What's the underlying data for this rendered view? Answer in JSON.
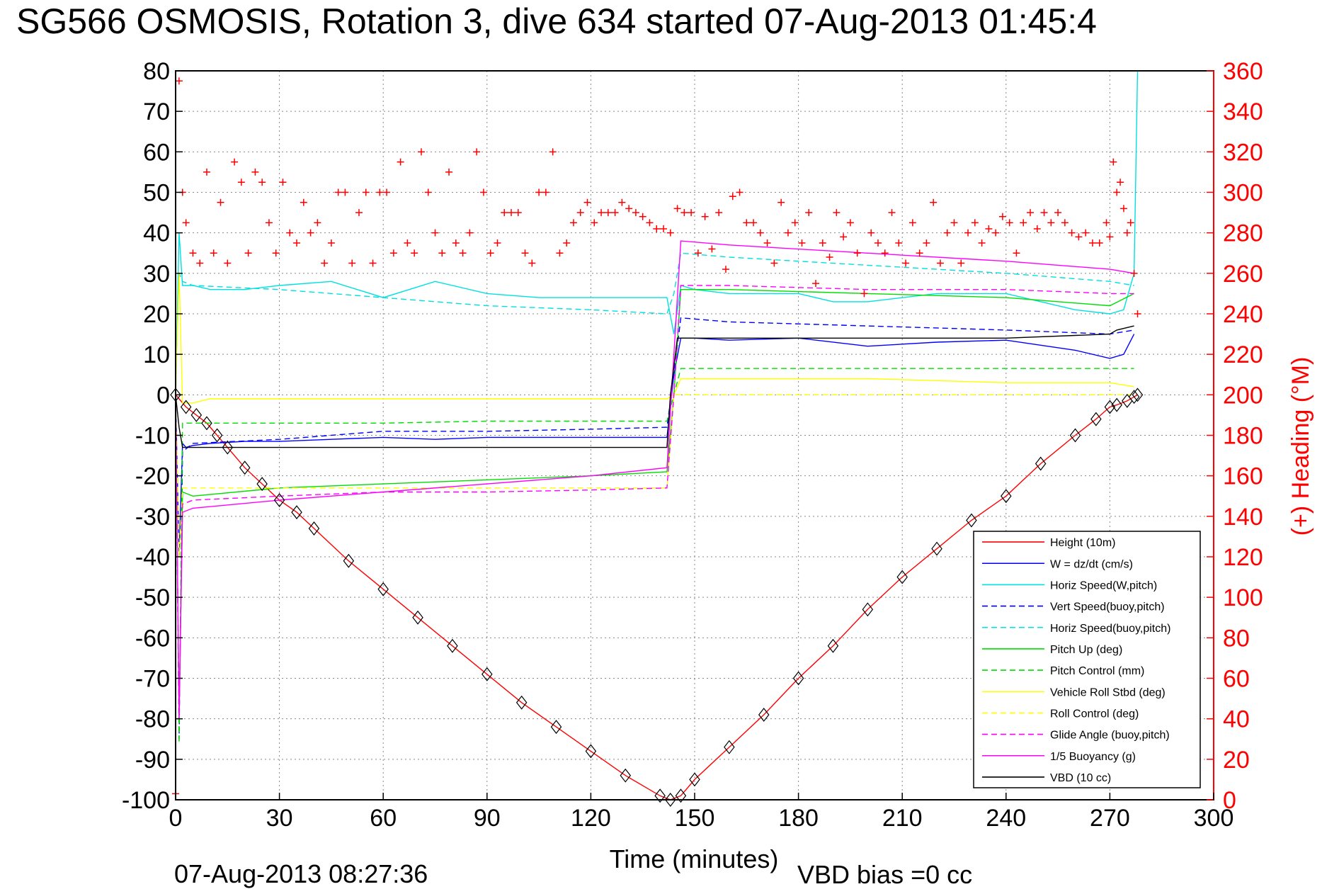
{
  "figure": {
    "title": "SG566 OSMOSIS, Rotation 3, dive 634 started 07-Aug-2013 01:45:4",
    "timestamp": "07-Aug-2013 08:27:36",
    "vbd_bias": "VBD bias =0 cc"
  },
  "chart_data": {
    "type": "line",
    "title": "SG566 OSMOSIS, Rotation 3, dive 634 started 07-Aug-2013 01:45:4",
    "xlabel": "Time (minutes)",
    "ylabel": "",
    "y2label": "(+) Heading (°M)",
    "xlim": [
      0,
      300
    ],
    "ylim": [
      -100,
      80
    ],
    "y2lim": [
      0,
      360
    ],
    "xticks": [
      0,
      30,
      60,
      90,
      120,
      150,
      180,
      210,
      240,
      270,
      300
    ],
    "yticks": [
      80,
      70,
      60,
      50,
      40,
      30,
      20,
      10,
      0,
      -10,
      -20,
      -30,
      -40,
      -50,
      -60,
      -70,
      -80,
      -90,
      -100
    ],
    "y2ticks": [
      360,
      340,
      320,
      300,
      280,
      260,
      240,
      220,
      200,
      180,
      160,
      140,
      120,
      100,
      80,
      60,
      40,
      20,
      0
    ],
    "grid": true,
    "legend_position": "bottom-right",
    "colors": {
      "axis_right": "#ff0000",
      "frame": "#000000",
      "grid": "#888888"
    },
    "series": [
      {
        "name": "Height (10m)",
        "color": "#ff0000",
        "style": "solid",
        "x": [
          0,
          3,
          6,
          9,
          12,
          15,
          20,
          25,
          30,
          35,
          40,
          50,
          60,
          70,
          80,
          90,
          100,
          110,
          120,
          130,
          140,
          143,
          146,
          150,
          160,
          170,
          180,
          190,
          200,
          210,
          220,
          230,
          240,
          250,
          260,
          266,
          270,
          272,
          275,
          277,
          278
        ],
        "y": [
          0,
          -3,
          -5,
          -7,
          -10,
          -13,
          -18,
          -22,
          -26,
          -29,
          -33,
          -41,
          -48,
          -55,
          -62,
          -69,
          -76,
          -82,
          -88,
          -94,
          -99,
          -100,
          -99,
          -95,
          -87,
          -79,
          -70,
          -62,
          -53,
          -45,
          -38,
          -31,
          -25,
          -17,
          -10,
          -6,
          -3,
          -2.5,
          -1.5,
          -0.5,
          0
        ]
      },
      {
        "name": "W = dz/dt (cm/s)",
        "color": "#0000ff",
        "style": "solid",
        "x": [
          0,
          1,
          2,
          3,
          5,
          10,
          20,
          30,
          45,
          60,
          75,
          90,
          110,
          130,
          142,
          144,
          146,
          150,
          160,
          180,
          200,
          220,
          240,
          260,
          270,
          274,
          277
        ],
        "y": [
          0,
          -40,
          -12,
          -13,
          -12.5,
          -12,
          -11.5,
          -11.5,
          -11,
          -10.5,
          -11,
          -10.5,
          -10.5,
          -10.5,
          -10.5,
          5,
          14,
          14,
          13.5,
          14,
          12,
          13,
          13.5,
          11,
          9,
          10,
          15
        ]
      },
      {
        "name": "Horiz Speed(W,pitch)",
        "color": "#00e0e0",
        "style": "solid",
        "x": [
          0,
          1,
          2,
          5,
          10,
          20,
          30,
          45,
          60,
          75,
          90,
          105,
          120,
          135,
          142,
          144,
          146,
          150,
          160,
          180,
          190,
          200,
          220,
          240,
          260,
          270,
          274,
          277,
          278
        ],
        "y": [
          0,
          40,
          27,
          27,
          26,
          26,
          27,
          28,
          24,
          28,
          25,
          24,
          24,
          24,
          24,
          15,
          27,
          26,
          25,
          25,
          23,
          23,
          25,
          25,
          21,
          20,
          21,
          30,
          80
        ]
      },
      {
        "name": "Vert Speed(buoy,pitch)",
        "color": "#0000ff",
        "style": "dashed",
        "x": [
          0,
          1,
          2,
          5,
          30,
          60,
          90,
          120,
          142,
          144,
          146,
          160,
          200,
          240,
          270,
          277
        ],
        "y": [
          0,
          -85,
          -14,
          -12,
          -11,
          -9,
          -9,
          -8.5,
          -8,
          5,
          19,
          18,
          17,
          16,
          15,
          16
        ]
      },
      {
        "name": "Horiz Speed(buoy,pitch)",
        "color": "#00e0e0",
        "style": "dashed",
        "x": [
          0,
          1,
          2,
          5,
          30,
          60,
          90,
          120,
          142,
          144,
          146,
          160,
          200,
          240,
          270,
          277
        ],
        "y": [
          0,
          30,
          28,
          27,
          26,
          24,
          22,
          21,
          20,
          25,
          35,
          34,
          32,
          30,
          28,
          27
        ]
      },
      {
        "name": "Pitch Up (deg)",
        "color": "#00dd00",
        "style": "solid",
        "x": [
          0,
          1,
          2,
          5,
          30,
          60,
          90,
          120,
          142,
          144,
          146,
          160,
          200,
          240,
          270,
          277
        ],
        "y": [
          0,
          -80,
          -24,
          -25,
          -23,
          -22,
          -21,
          -20,
          -19,
          0,
          26,
          26,
          25,
          24,
          22,
          25
        ]
      },
      {
        "name": "Pitch Control (mm)",
        "color": "#00dd00",
        "style": "dashed",
        "x": [
          0,
          1,
          2,
          5,
          30,
          60,
          90,
          120,
          142,
          144,
          146,
          277
        ],
        "y": [
          0,
          -86,
          -7,
          -7,
          -7,
          -7,
          -6.5,
          -6.5,
          -6.5,
          0,
          6.5,
          6.5
        ]
      },
      {
        "name": "Vehicle Roll Stbd (deg)",
        "color": "#ffff00",
        "style": "solid",
        "x": [
          0,
          1,
          2,
          5,
          10,
          30,
          60,
          90,
          120,
          142,
          144,
          146,
          160,
          200,
          240,
          270,
          277
        ],
        "y": [
          0,
          30,
          -2,
          -2,
          -1,
          -1,
          -1,
          -1,
          -1,
          -1,
          0,
          4,
          4,
          4,
          3,
          3,
          2
        ]
      },
      {
        "name": "Roll Control (deg)",
        "color": "#ffff00",
        "style": "dashed",
        "x": [
          0,
          1,
          2,
          5,
          30,
          60,
          90,
          120,
          142,
          144,
          146,
          277
        ],
        "y": [
          0,
          -40,
          -23,
          -23,
          -23,
          -23,
          -23,
          -23,
          -23,
          0,
          0,
          0
        ]
      },
      {
        "name": "Glide Angle (buoy,pitch)",
        "color": "#ff00ff",
        "style": "dashed",
        "x": [
          0,
          1,
          2,
          5,
          30,
          60,
          90,
          120,
          142,
          144,
          146,
          160,
          200,
          240,
          270,
          277
        ],
        "y": [
          0,
          -80,
          -27,
          -26,
          -25,
          -24,
          -24,
          -23.5,
          -23,
          0,
          27,
          27,
          26,
          26,
          25,
          25
        ]
      },
      {
        "name": "1/5 Buoyancy (g)",
        "color": "#ff00ff",
        "style": "solid",
        "x": [
          0,
          1,
          2,
          5,
          30,
          60,
          90,
          120,
          142,
          144,
          146,
          160,
          200,
          240,
          270,
          277
        ],
        "y": [
          0,
          -80,
          -29,
          -28,
          -26,
          -24,
          -22,
          -20,
          -18,
          10,
          38,
          37,
          35,
          33,
          31,
          30
        ]
      },
      {
        "name": "VBD (10 cc)",
        "color": "#000000",
        "style": "solid",
        "x": [
          0,
          1,
          2,
          5,
          30,
          60,
          90,
          120,
          142,
          143,
          145,
          146,
          200,
          240,
          270,
          272,
          277
        ],
        "y": [
          0,
          -8,
          -13,
          -13,
          -13,
          -13,
          -13,
          -13,
          -13,
          0,
          14,
          14,
          14,
          14,
          15,
          16,
          17
        ]
      }
    ],
    "heading_points": {
      "name": "(+) Heading (°M)",
      "color": "#ff0000",
      "marker": "+",
      "x": [
        0,
        1,
        2,
        3,
        5,
        7,
        9,
        11,
        13,
        15,
        17,
        19,
        21,
        23,
        25,
        27,
        29,
        31,
        33,
        35,
        37,
        39,
        41,
        43,
        45,
        47,
        49,
        51,
        53,
        55,
        57,
        59,
        61,
        63,
        65,
        67,
        69,
        71,
        73,
        75,
        77,
        79,
        81,
        83,
        85,
        87,
        89,
        91,
        93,
        95,
        97,
        99,
        101,
        103,
        105,
        107,
        109,
        111,
        113,
        115,
        117,
        119,
        121,
        123,
        125,
        127,
        129,
        131,
        133,
        135,
        137,
        139,
        141,
        143,
        145,
        147,
        149,
        151,
        153,
        155,
        157,
        159,
        161,
        163,
        165,
        167,
        169,
        171,
        173,
        175,
        177,
        179,
        181,
        183,
        185,
        187,
        189,
        191,
        193,
        195,
        197,
        199,
        201,
        203,
        205,
        207,
        209,
        211,
        213,
        215,
        217,
        219,
        221,
        223,
        225,
        227,
        229,
        231,
        233,
        235,
        237,
        239,
        241,
        243,
        245,
        247,
        249,
        251,
        253,
        255,
        257,
        259,
        261,
        263,
        265,
        267,
        269,
        270,
        271,
        272,
        273,
        274,
        275,
        276,
        277,
        278
      ],
      "y": [
        3,
        355,
        300,
        285,
        270,
        265,
        310,
        270,
        295,
        265,
        315,
        305,
        270,
        310,
        305,
        285,
        270,
        305,
        280,
        275,
        295,
        280,
        285,
        265,
        275,
        300,
        300,
        265,
        290,
        300,
        265,
        300,
        300,
        270,
        315,
        275,
        270,
        320,
        300,
        280,
        270,
        310,
        275,
        270,
        280,
        320,
        300,
        270,
        275,
        290,
        290,
        290,
        270,
        265,
        300,
        300,
        320,
        270,
        275,
        285,
        290,
        295,
        285,
        290,
        290,
        290,
        295,
        292,
        290,
        288,
        285,
        282,
        282,
        280,
        292,
        290,
        290,
        270,
        288,
        272,
        290,
        262,
        298,
        300,
        285,
        285,
        280,
        275,
        265,
        295,
        280,
        285,
        275,
        290,
        255,
        275,
        268,
        290,
        278,
        285,
        270,
        250,
        280,
        275,
        270,
        290,
        275,
        265,
        285,
        270,
        275,
        295,
        265,
        280,
        285,
        265,
        280,
        285,
        275,
        282,
        280,
        288,
        285,
        270,
        285,
        290,
        282,
        290,
        285,
        290,
        285,
        280,
        278,
        280,
        275,
        275,
        285,
        278,
        315,
        300,
        305,
        292,
        280,
        285,
        260,
        240
      ]
    }
  }
}
